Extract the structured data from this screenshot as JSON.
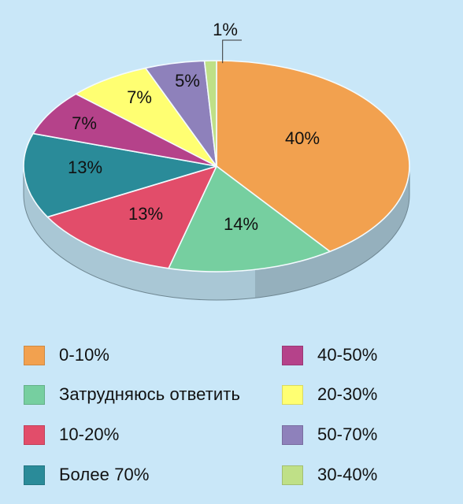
{
  "chart_data": {
    "type": "pie",
    "title": "",
    "slices": [
      {
        "label": "0-10%",
        "value": 40,
        "value_label": "40%",
        "color": "#f2a14f"
      },
      {
        "label": "Затрудняюсь ответить",
        "value": 14,
        "value_label": "14%",
        "color": "#76cfa0"
      },
      {
        "label": "10-20%",
        "value": 13,
        "value_label": "13%",
        "color": "#e24d6a"
      },
      {
        "label": "Более 70%",
        "value": 13,
        "value_label": "13%",
        "color": "#2a8b99"
      },
      {
        "label": "40-50%",
        "value": 7,
        "value_label": "7%",
        "color": "#b5428a"
      },
      {
        "label": "20-30%",
        "value": 7,
        "value_label": "7%",
        "color": "#ffff72"
      },
      {
        "label": "50-70%",
        "value": 5,
        "value_label": "5%",
        "color": "#8e81bb"
      },
      {
        "label": "30-40%",
        "value": 1,
        "value_label": "1%",
        "color": "#bfe087"
      }
    ],
    "legend_position": "bottom",
    "legend_columns": [
      [
        "0-10%",
        "Затрудняюсь ответить",
        "10-20%",
        "Более 70%"
      ],
      [
        "40-50%",
        "20-30%",
        "50-70%",
        "30-40%"
      ]
    ],
    "side_color": "#a9c7d5",
    "side_shadow_color": "#6f8792",
    "background_color": "#c9e7f8",
    "edge_color": "#f4fbff"
  }
}
